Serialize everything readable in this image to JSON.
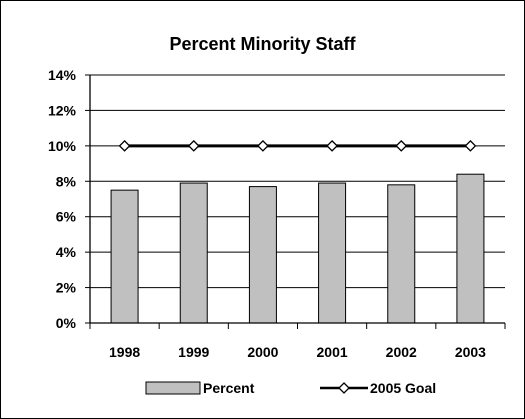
{
  "chart_data": {
    "type": "bar",
    "title": "Percent Minority Staff",
    "categories": [
      "1998",
      "1999",
      "2000",
      "2001",
      "2002",
      "2003"
    ],
    "series": [
      {
        "name": "Percent",
        "type": "bar",
        "values": [
          7.5,
          7.9,
          7.7,
          7.9,
          7.8,
          8.4
        ],
        "color": "#c0c0c0"
      },
      {
        "name": "2005 Goal",
        "type": "line",
        "values": [
          10,
          10,
          10,
          10,
          10,
          10
        ],
        "color": "#000000",
        "marker": "diamond-open"
      }
    ],
    "yticks": [
      "0%",
      "2%",
      "4%",
      "6%",
      "8%",
      "10%",
      "12%",
      "14%"
    ],
    "ylim": [
      0,
      14
    ],
    "y_tick_step": 2,
    "grid": true,
    "legend_position": "bottom"
  }
}
